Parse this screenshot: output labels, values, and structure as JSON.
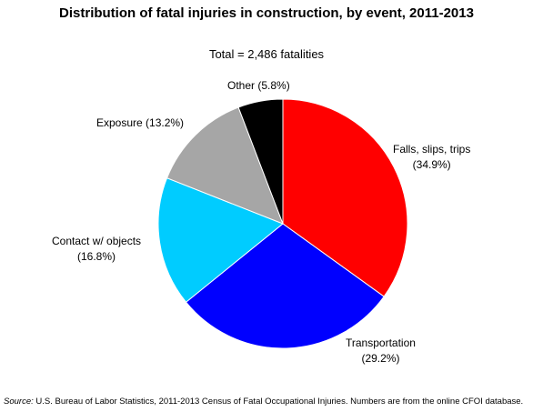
{
  "chart_data": {
    "type": "pie",
    "title": "Distribution of fatal injuries in construction, by event, 2011-2013",
    "subtitle": "Total = 2,486 fatalities",
    "slices": [
      {
        "name": "Falls, slips, trips",
        "pct_label": "(34.9%)",
        "value": 34.9,
        "color": "#ff0000"
      },
      {
        "name": "Transportation",
        "pct_label": "(29.2%)",
        "value": 29.2,
        "color": "#0000ff"
      },
      {
        "name": "Contact w/ objects",
        "pct_label": "(16.8%)",
        "value": 16.8,
        "color": "#00ccff"
      },
      {
        "name": "Exposure",
        "pct_label": "(13.2%)",
        "value": 13.2,
        "color": "#a6a6a6"
      },
      {
        "name": "Other",
        "pct_label": "(5.8%)",
        "value": 5.8,
        "color": "#000000"
      }
    ]
  },
  "labels": {
    "falls_line1": "Falls, slips, trips",
    "falls_line2": "(34.9%)",
    "transport_line1": "Transportation",
    "transport_line2": "(29.2%)",
    "contact_line1": "Contact w/ objects",
    "contact_line2": "(16.8%)",
    "exposure": "Exposure (13.2%)",
    "other": "Other (5.8%)"
  },
  "source": {
    "prefix": "Source:",
    "text": " U.S. Bureau of Labor Statistics, 2011-2013 Census of Fatal Occupational Injuries. Numbers are from the online CFOI database."
  }
}
